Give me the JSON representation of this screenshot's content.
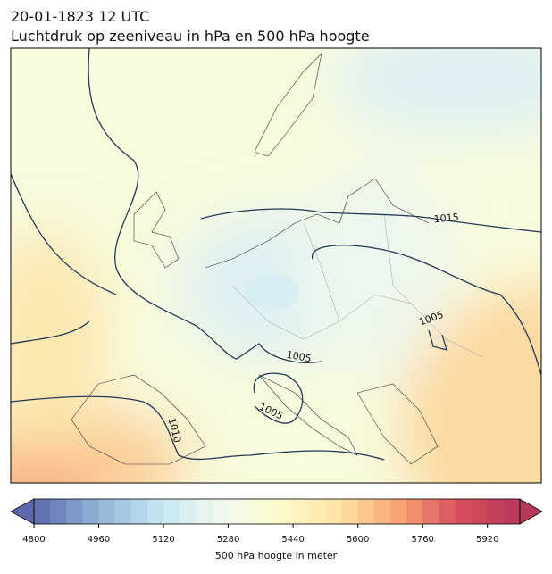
{
  "title": "20-01-1823 12 UTC",
  "subtitle": "Luchtdruk op zeeniveau in hPa en 500 hPa hoogte",
  "contour_labels": [
    1015,
    1005,
    1005,
    1005,
    1010
  ],
  "colorbar": {
    "label": "500 hPa hoogte in meter",
    "xlim": [
      4800,
      6000
    ],
    "xticks": [
      4800,
      4960,
      5120,
      5280,
      5440,
      5600,
      5760,
      5920
    ],
    "colors": [
      "#5f68ad",
      "#8db1d5",
      "#c2e2ef",
      "#eef8ef",
      "#fdfbcd",
      "#fde3a4",
      "#f7a673",
      "#d84e5e",
      "#b7385a"
    ]
  }
}
